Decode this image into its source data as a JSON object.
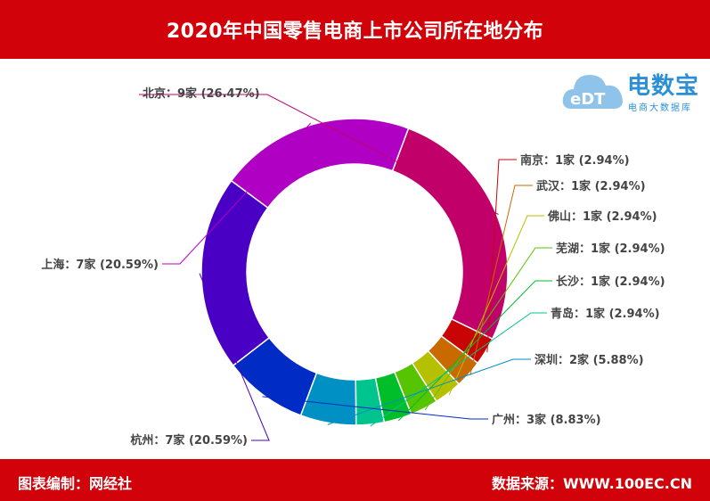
{
  "title": "2020年中国零售电商上市公司所在地分布",
  "footer": {
    "left": "图表编制：网经社",
    "right": "数据来源：WWW.100EC.CN"
  },
  "logo": {
    "icon_text": "eDT",
    "name": "电数宝",
    "tagline": "电商大数据库"
  },
  "chart_data": {
    "type": "pie",
    "donut": true,
    "unit": "家",
    "slices": [
      {
        "name": "北京",
        "value": 9,
        "percent": "26.47%",
        "color": "#c2006a",
        "label": "北京：9家 (26.47%)"
      },
      {
        "name": "南京",
        "value": 1,
        "percent": "2.94%",
        "color": "#c80404",
        "label": "南京：1家 (2.94%)"
      },
      {
        "name": "武汉",
        "value": 1,
        "percent": "2.94%",
        "color": "#c86a00",
        "label": "武汉：1家 (2.94%)"
      },
      {
        "name": "佛山",
        "value": 1,
        "percent": "2.94%",
        "color": "#b5c000",
        "label": "佛山：1家 (2.94%)"
      },
      {
        "name": "芜湖",
        "value": 1,
        "percent": "2.94%",
        "color": "#56c400",
        "label": "芜湖：1家 (2.94%)"
      },
      {
        "name": "长沙",
        "value": 1,
        "percent": "2.94%",
        "color": "#00be2a",
        "label": "长沙：1家 (2.94%)"
      },
      {
        "name": "青岛",
        "value": 1,
        "percent": "2.94%",
        "color": "#00c48e",
        "label": "青岛：1家 (2.94%)"
      },
      {
        "name": "深圳",
        "value": 2,
        "percent": "5.88%",
        "color": "#0090c4",
        "label": "深圳：2家 (5.88%)"
      },
      {
        "name": "广州",
        "value": 3,
        "percent": "8.83%",
        "color": "#002bc4",
        "label": "广州：3家 (8.83%)"
      },
      {
        "name": "杭州",
        "value": 7,
        "percent": "20.59%",
        "color": "#4a00c4",
        "label": "杭州：7家 (20.59%)"
      },
      {
        "name": "上海",
        "value": 7,
        "percent": "20.59%",
        "color": "#b000c4",
        "label": "上海：7家 (20.59%)"
      }
    ]
  }
}
